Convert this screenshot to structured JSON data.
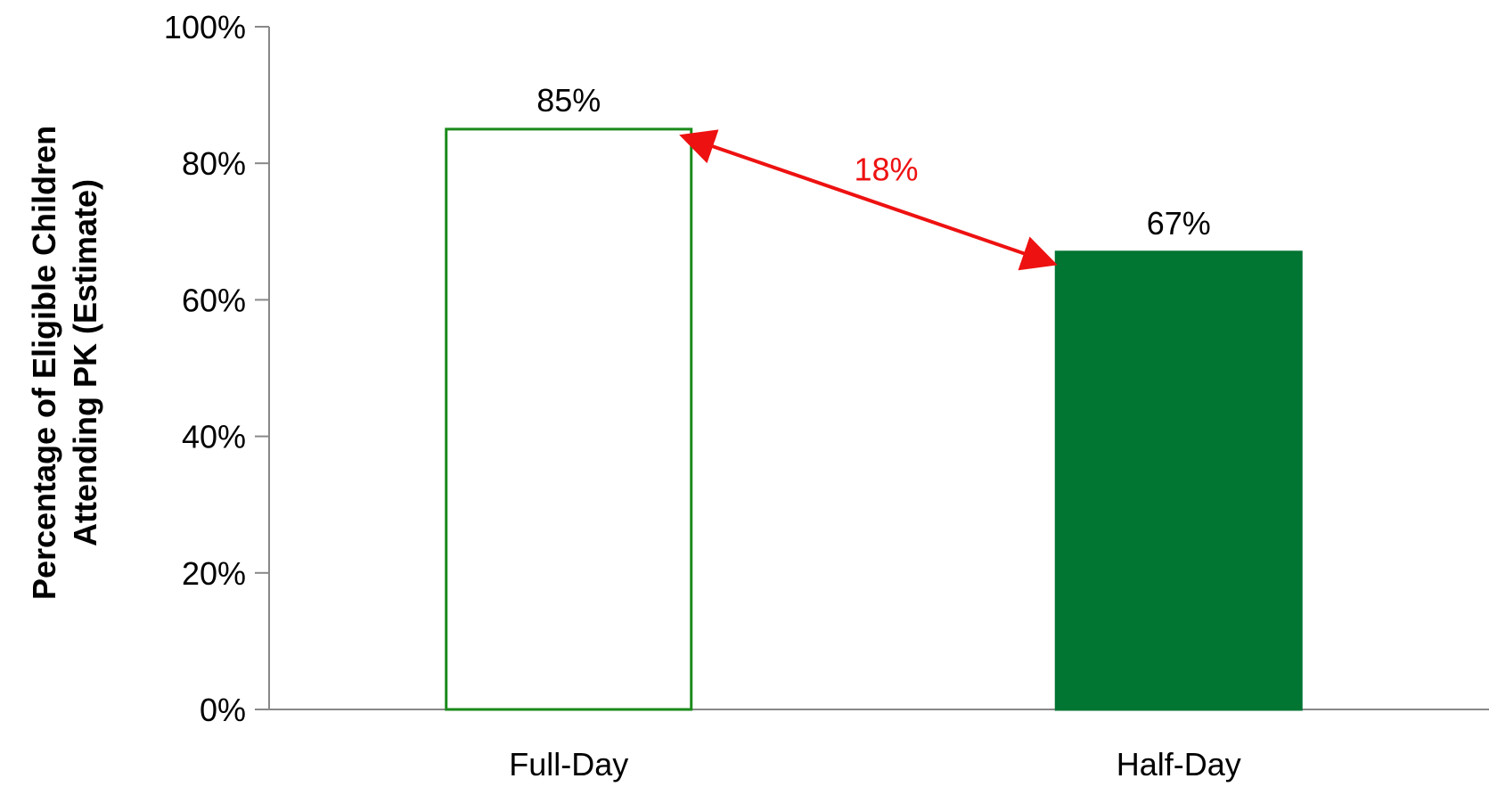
{
  "chart_data": {
    "type": "bar",
    "categories": [
      "Full-Day",
      "Half-Day"
    ],
    "values": [
      85,
      67
    ],
    "data_labels": [
      "85%",
      "67%"
    ],
    "title": "",
    "xlabel": "",
    "ylabel_lines": [
      "Percentage of Eligible Children",
      "Attending PK (Estimate)"
    ],
    "ylim": [
      0,
      100
    ],
    "yticks": [
      0,
      20,
      40,
      60,
      80,
      100
    ],
    "ytick_labels": [
      "0%",
      "20%",
      "40%",
      "60%",
      "80%",
      "100%"
    ],
    "grid": false,
    "legend": "none",
    "bar_styles": [
      {
        "fill": "#ffffff",
        "stroke": "#1a8a1a"
      },
      {
        "fill": "#017532",
        "stroke": "#017532"
      }
    ],
    "annotation": {
      "type": "double-arrow",
      "from_category": "Full-Day",
      "to_category": "Half-Day",
      "label": "18%",
      "color": "#ee1111"
    },
    "axis_color": "#888888"
  }
}
